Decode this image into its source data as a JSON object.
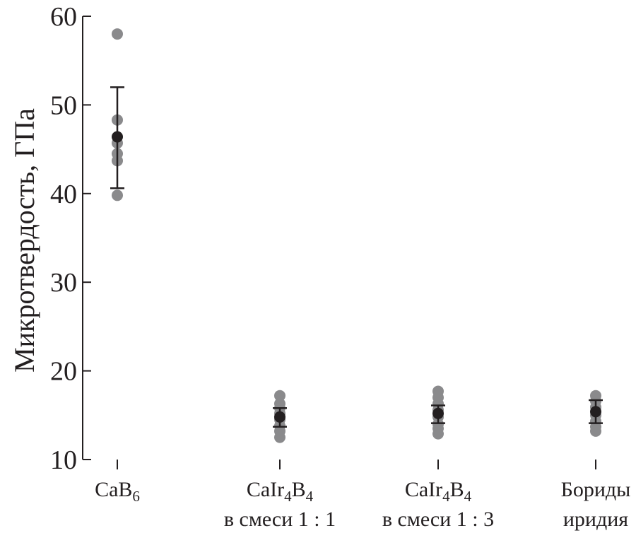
{
  "chart_data": {
    "type": "scatter",
    "title": "",
    "ylabel": "Микротвердость, ГПа",
    "xlabel": "",
    "ylim": [
      10,
      60
    ],
    "yticks": [
      10,
      20,
      30,
      40,
      50,
      60
    ],
    "grid": false,
    "categories": [
      {
        "line1": "CaB",
        "sub1": "6",
        "line2": ""
      },
      {
        "line1": "CaIr",
        "sub1": "4",
        "mid": "B",
        "sub2": "4",
        "line2": "в смеси 1 : 1"
      },
      {
        "line1": "CaIr",
        "sub1": "4",
        "mid": "B",
        "sub2": "4",
        "line2": "в смеси 1 : 3"
      },
      {
        "line1": "Бориды",
        "line2": "иридия"
      }
    ],
    "groups": [
      {
        "points": [
          58.0,
          48.3,
          45.7,
          44.5,
          43.7,
          39.8
        ],
        "mean": 46.4,
        "err_low": 40.6,
        "err_high": 52.0
      },
      {
        "points": [
          17.2,
          16.3,
          15.8,
          15.2,
          14.5,
          13.8,
          13.2,
          12.5
        ],
        "mean": 14.8,
        "err_low": 13.7,
        "err_high": 15.8
      },
      {
        "points": [
          17.7,
          17.0,
          16.3,
          15.6,
          14.8,
          14.0,
          13.5,
          12.9
        ],
        "mean": 15.2,
        "err_low": 14.1,
        "err_high": 16.1
      },
      {
        "points": [
          17.2,
          16.6,
          15.9,
          15.0,
          14.3,
          13.7,
          13.2
        ],
        "mean": 15.4,
        "err_low": 14.1,
        "err_high": 16.7
      }
    ],
    "colors": {
      "points": "#8a8a8c",
      "mean": "#231f20",
      "axis": "#231f20"
    }
  }
}
